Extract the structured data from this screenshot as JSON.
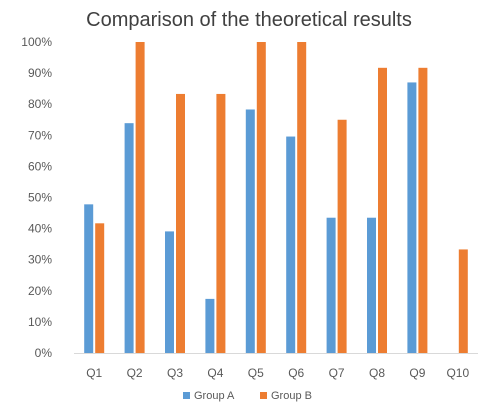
{
  "chart_data": {
    "type": "bar",
    "title": "Comparison of the theoretical results",
    "xlabel": "",
    "ylabel": "",
    "categories": [
      "Q1",
      "Q2",
      "Q3",
      "Q4",
      "Q5",
      "Q6",
      "Q7",
      "Q8",
      "Q9",
      "Q10"
    ],
    "series": [
      {
        "name": "Group A",
        "color": "#5B9BD5",
        "values": [
          47.8,
          73.9,
          39.1,
          17.4,
          78.3,
          69.6,
          43.5,
          43.5,
          87.0,
          0
        ]
      },
      {
        "name": "Group B",
        "color": "#ED7D31",
        "values": [
          41.7,
          100,
          83.3,
          83.3,
          100,
          100,
          75.0,
          91.7,
          91.7,
          33.3
        ]
      }
    ],
    "ylim": [
      0,
      100
    ],
    "yticks": [
      0,
      10,
      20,
      30,
      40,
      50,
      60,
      70,
      80,
      90,
      100
    ],
    "ytick_format": "percent",
    "grid": false,
    "legend": "bottom"
  }
}
